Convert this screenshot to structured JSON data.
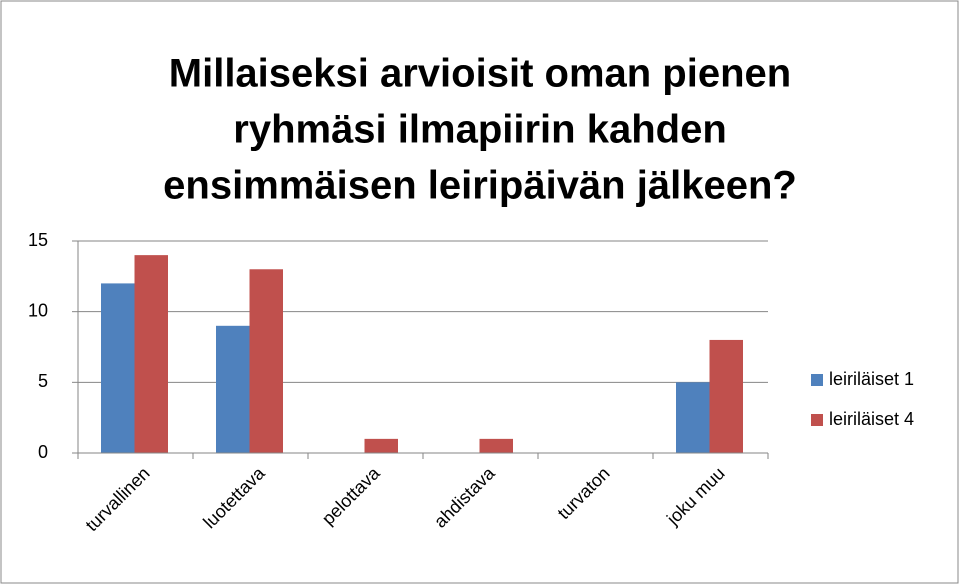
{
  "chart_data": {
    "type": "bar",
    "title": [
      "Millaiseksi arvioisit oman pienen",
      "ryhmäsi ilmapiirin kahden",
      "ensimmäisen leiripäivän jälkeen?"
    ],
    "categories": [
      "turvallinen",
      "luotettava",
      "pelottava",
      "ahdistava",
      "turvaton",
      "joku muu"
    ],
    "series": [
      {
        "name": "leiriläiset 1",
        "color": "#4f81bd",
        "values": [
          12,
          9,
          0,
          0,
          0,
          5
        ]
      },
      {
        "name": "leiriläiset 4",
        "color": "#c0504d",
        "values": [
          14,
          13,
          1,
          1,
          0,
          8
        ]
      }
    ],
    "ylim": [
      0,
      15
    ],
    "yticks": [
      0,
      5,
      10,
      15
    ],
    "grid": true,
    "legend": "right"
  }
}
